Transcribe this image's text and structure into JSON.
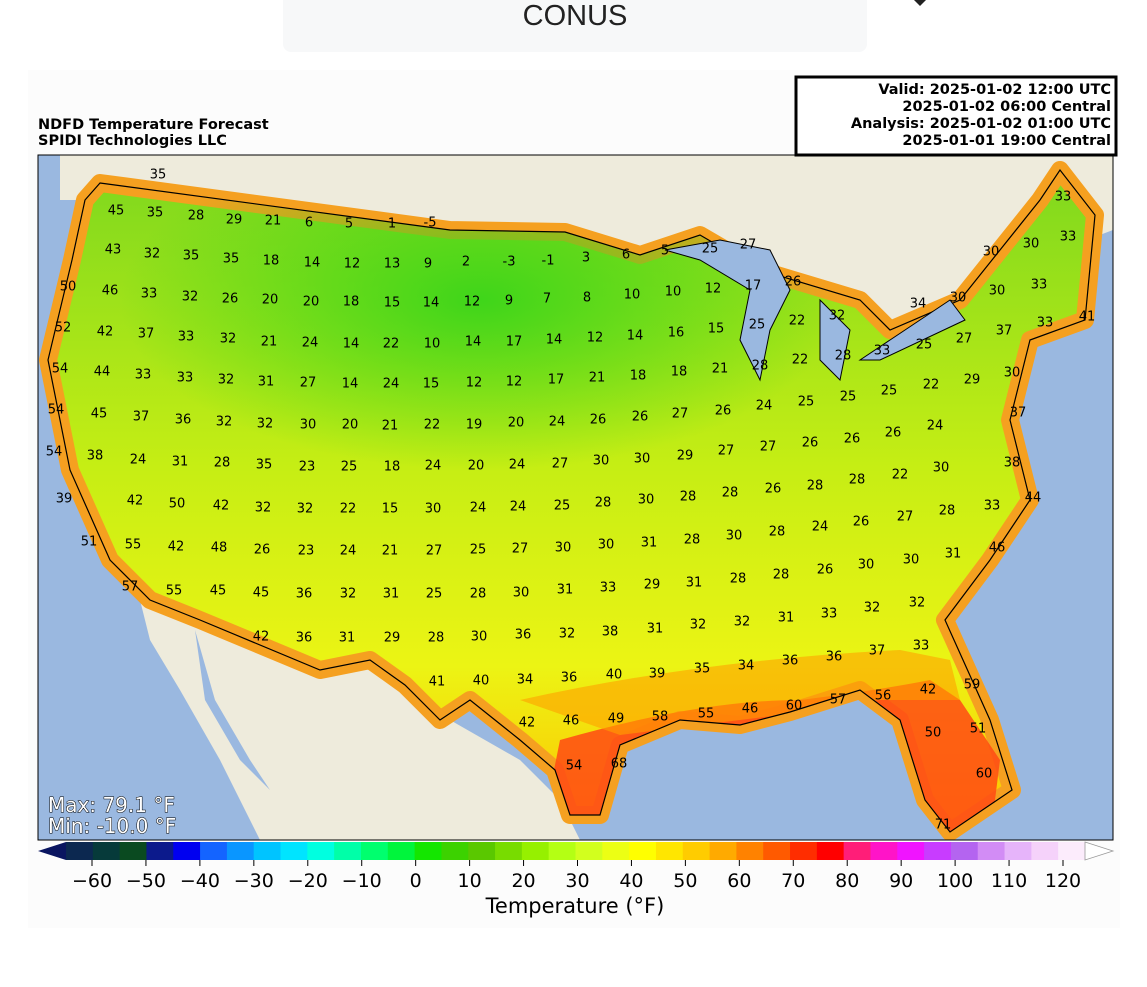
{
  "header": {
    "selector": "CONUS"
  },
  "map": {
    "title": "NDFD Temperature Forecast",
    "subtitle": "SPIDI Technologies LLC",
    "valid_box": [
      "Valid: 2025-01-02 12:00 UTC",
      "2025-01-02 06:00 Central",
      "Analysis: 2025-01-02 01:00 UTC",
      "2025-01-01 19:00 Central"
    ],
    "max_text": "Max: 79.1 °F",
    "min_text": "Min: -10.0 °F",
    "labels": [
      35,
      45,
      35,
      28,
      29,
      21,
      6,
      5,
      1,
      -5,
      5,
      25,
      27,
      33,
      43,
      32,
      35,
      35,
      18,
      14,
      12,
      13,
      9,
      2,
      -3,
      -1,
      3,
      6,
      30,
      30,
      33,
      50,
      46,
      33,
      32,
      26,
      20,
      20,
      18,
      15,
      14,
      12,
      9,
      7,
      8,
      10,
      10,
      12,
      17,
      26,
      34,
      30,
      30,
      33,
      52,
      42,
      37,
      33,
      32,
      21,
      24,
      14,
      22,
      10,
      14,
      17,
      14,
      12,
      14,
      16,
      15,
      25,
      22,
      32,
      41,
      37,
      33,
      27,
      25,
      33,
      28,
      54,
      44,
      33,
      33,
      32,
      31,
      27,
      14,
      24,
      15,
      12,
      12,
      17,
      21,
      18,
      18,
      21,
      28,
      22,
      30,
      29,
      22,
      25,
      25,
      54,
      45,
      37,
      36,
      32,
      32,
      30,
      20,
      21,
      22,
      19,
      20,
      24,
      26,
      26,
      27,
      26,
      24,
      25,
      37,
      24,
      26,
      26,
      54,
      38,
      24,
      31,
      28,
      35,
      23,
      25,
      18,
      24,
      20,
      24,
      27,
      30,
      30,
      29,
      27,
      27,
      26,
      38,
      30,
      22,
      28,
      28,
      26,
      39,
      42,
      50,
      42,
      32,
      32,
      22,
      15,
      30,
      24,
      24,
      25,
      28,
      30,
      28,
      28,
      44,
      33,
      28,
      27,
      26,
      24,
      28,
      30,
      28,
      31,
      51,
      55,
      42,
      48,
      26,
      23,
      24,
      21,
      27,
      25,
      27,
      30,
      30,
      46,
      31,
      30,
      30,
      26,
      28,
      28,
      31,
      29,
      57,
      55,
      45,
      45,
      36,
      32,
      31,
      25,
      28,
      30,
      31,
      33,
      32,
      32,
      33,
      31,
      32,
      32,
      31,
      42,
      36,
      31,
      29,
      28,
      30,
      36,
      32,
      38,
      33,
      37,
      36,
      36,
      41,
      40,
      34,
      36,
      40,
      39,
      35,
      34,
      59,
      42,
      56,
      57,
      60,
      46,
      42,
      46,
      49,
      58,
      55,
      51,
      50,
      54,
      68,
      60,
      71
    ]
  },
  "colorbar": {
    "label": "Temperature (°F)",
    "ticks": [
      {
        "value": -60,
        "label": "−60"
      },
      {
        "value": -50,
        "label": "−50"
      },
      {
        "value": -40,
        "label": "−40"
      },
      {
        "value": -30,
        "label": "−30"
      },
      {
        "value": -20,
        "label": "−20"
      },
      {
        "value": -10,
        "label": "−10"
      },
      0,
      10,
      20,
      30,
      40,
      50,
      60,
      70,
      80,
      90,
      100,
      110,
      120
    ],
    "colors": [
      "#0a1560",
      "#0c2850",
      "#063a3a",
      "#0a4a20",
      "#0c1a8c",
      "#0000f0",
      "#1464ff",
      "#0a96ff",
      "#00c4ff",
      "#00e4ff",
      "#00ffe0",
      "#00ffa8",
      "#00ff6e",
      "#00f53c",
      "#14e600",
      "#3cd200",
      "#5ac800",
      "#78dc00",
      "#96f000",
      "#b4ff14",
      "#d2ff1e",
      "#ecff14",
      "#ffff00",
      "#ffe600",
      "#ffcc00",
      "#ffaa00",
      "#ff8200",
      "#ff5a00",
      "#ff2d00",
      "#ff0000",
      "#ff1e78",
      "#ff14c8",
      "#f014ff",
      "#c83cff",
      "#b464f0",
      "#d28cf5",
      "#e6b4fa",
      "#f5d2fa",
      "#fcecfc",
      "#ffffff"
    ]
  }
}
